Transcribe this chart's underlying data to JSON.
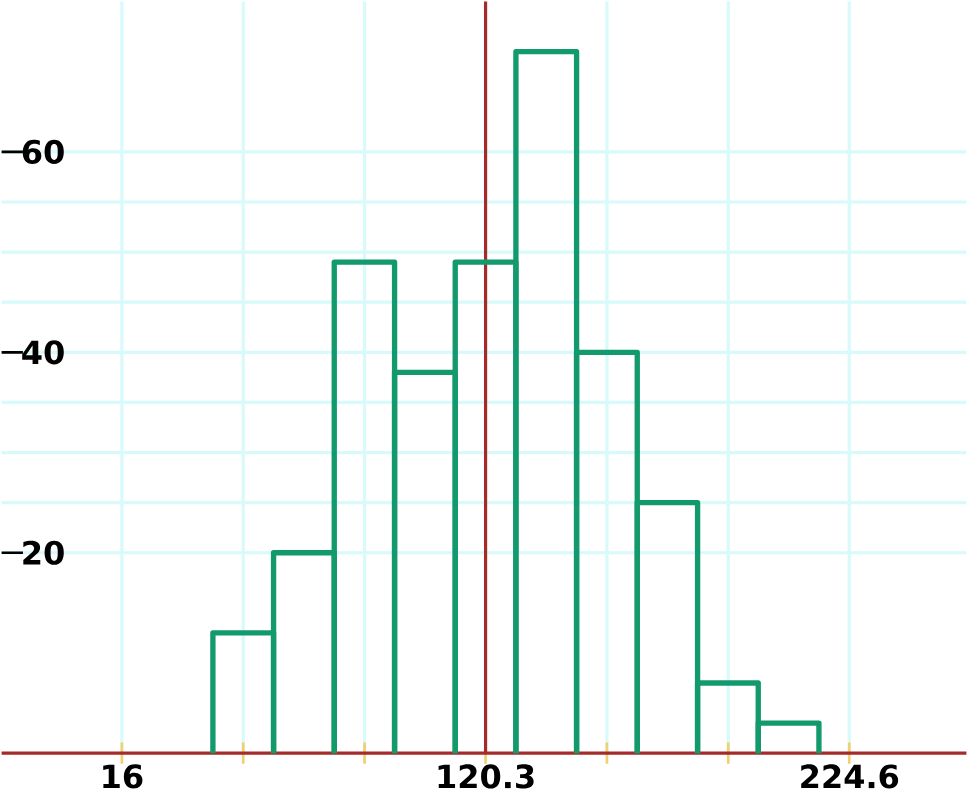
{
  "chart_data": {
    "type": "histogram",
    "bins": [
      42.1,
      59.5,
      76.9,
      94.2,
      111.6,
      129.0,
      146.4,
      163.8,
      181.1,
      198.5,
      215.9
    ],
    "values": [
      12,
      20,
      49,
      38,
      49,
      70,
      40,
      25,
      7,
      3
    ],
    "color": "#139a6c",
    "xlim": [
      -18.5,
      258.2
    ],
    "ylim": [
      0,
      75
    ],
    "xticks": [
      16,
      {
        "value": 50.8,
        "label": null
      },
      {
        "value": 85.6,
        "label": null
      },
      120.3,
      {
        "value": 155.1,
        "label": null
      },
      {
        "value": 189.9,
        "label": null
      },
      224.6
    ],
    "yticks": [
      20,
      40,
      60
    ],
    "ref_lines": [
      {
        "axis": "x",
        "value": 120.3,
        "color": "#a52a2a"
      }
    ],
    "grid": true
  }
}
